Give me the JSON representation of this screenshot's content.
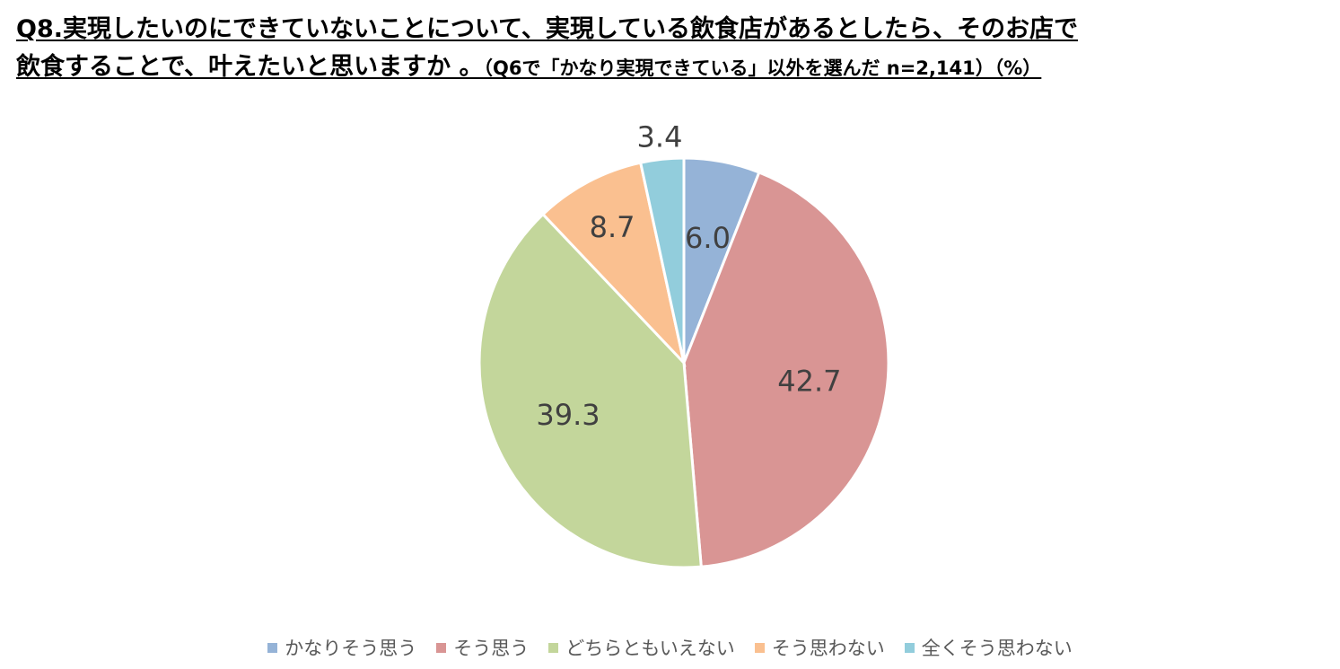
{
  "title": {
    "line1": "Q8.実現したいのにできていないことについて、実現している飲食店があるとしたら、そのお店で",
    "line2_main": "飲食することで、叶えたいと思いますか 。",
    "line2_sub": "（Q6で「かなり実現できている」以外を選んだ n=2,141）（%）"
  },
  "chart_data": {
    "type": "pie",
    "unit": "%",
    "n": 2141,
    "start_angle_deg": 0,
    "direction": "clockwise",
    "slices": [
      {
        "label": "かなりそう思う",
        "value": 6.0,
        "display": "6.0",
        "color": "#95b3d7"
      },
      {
        "label": "そう思う",
        "value": 42.7,
        "display": "42.7",
        "color": "#d99594"
      },
      {
        "label": "どちらともいえない",
        "value": 39.3,
        "display": "39.3",
        "color": "#c3d69b"
      },
      {
        "label": "そう思わない",
        "value": 8.7,
        "display": "8.7",
        "color": "#fac090"
      },
      {
        "label": "全くそう思わない",
        "value": 3.4,
        "display": "3.4",
        "color": "#92cddc"
      }
    ],
    "legend_position": "bottom"
  }
}
